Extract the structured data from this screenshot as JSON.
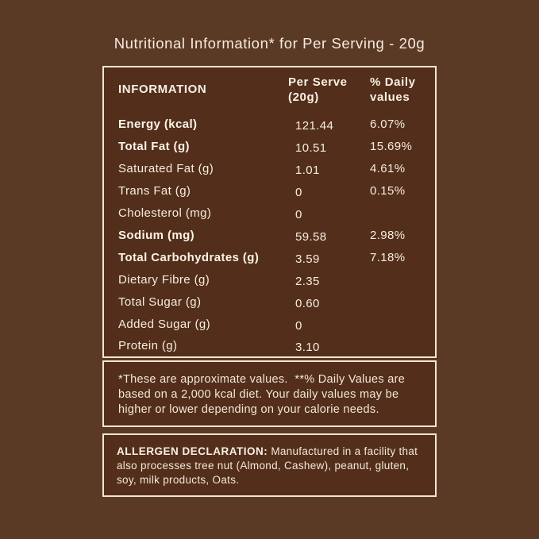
{
  "colors": {
    "page_background": "#5b3a25",
    "panel_background": "#532f1b",
    "border": "#f3e5d2",
    "text": "#f7eee2"
  },
  "title": "Nutritional Information* for Per Serving - 20g",
  "table": {
    "headers": [
      "INFORMATION",
      "Per Serve (20g)",
      "% Daily values"
    ],
    "rows": [
      {
        "label": "Energy (kcal)",
        "bold": true,
        "per_serve": "121.44",
        "daily": "6.07%"
      },
      {
        "label": "Total Fat (g)",
        "bold": true,
        "per_serve": "10.51",
        "daily": "15.69%"
      },
      {
        "label": "Saturated Fat (g)",
        "bold": false,
        "per_serve": "1.01",
        "daily": "4.61%"
      },
      {
        "label": "Trans Fat (g)",
        "bold": false,
        "per_serve": "0",
        "daily": "0.15%"
      },
      {
        "label": "Cholesterol (mg)",
        "bold": false,
        "per_serve": "0",
        "daily": ""
      },
      {
        "label": "Sodium (mg)",
        "bold": true,
        "per_serve": "59.58",
        "daily": "2.98%"
      },
      {
        "label": "Total Carbohydrates (g)",
        "bold": true,
        "per_serve": "3.59",
        "daily": "7.18%"
      },
      {
        "label": "Dietary Fibre (g)",
        "bold": false,
        "per_serve": "2.35",
        "daily": ""
      },
      {
        "label": "Total Sugar (g)",
        "bold": false,
        "per_serve": "0.60",
        "daily": ""
      },
      {
        "label": "Added Sugar (g)",
        "bold": false,
        "per_serve": "0",
        "daily": ""
      },
      {
        "label": "Protein (g)",
        "bold": false,
        "per_serve": "3.10",
        "daily": ""
      }
    ]
  },
  "footnote": "*These are approximate values.  **% Daily Values are based on a 2,000 kcal diet. Your daily values may be higher or lower depending on your calorie needs.",
  "allergen": {
    "heading": "ALLERGEN DECLARATION:",
    "text": "Manufactured in a facility that also processes tree nut (Almond, Cashew), peanut, gluten, soy, milk products, Oats."
  }
}
